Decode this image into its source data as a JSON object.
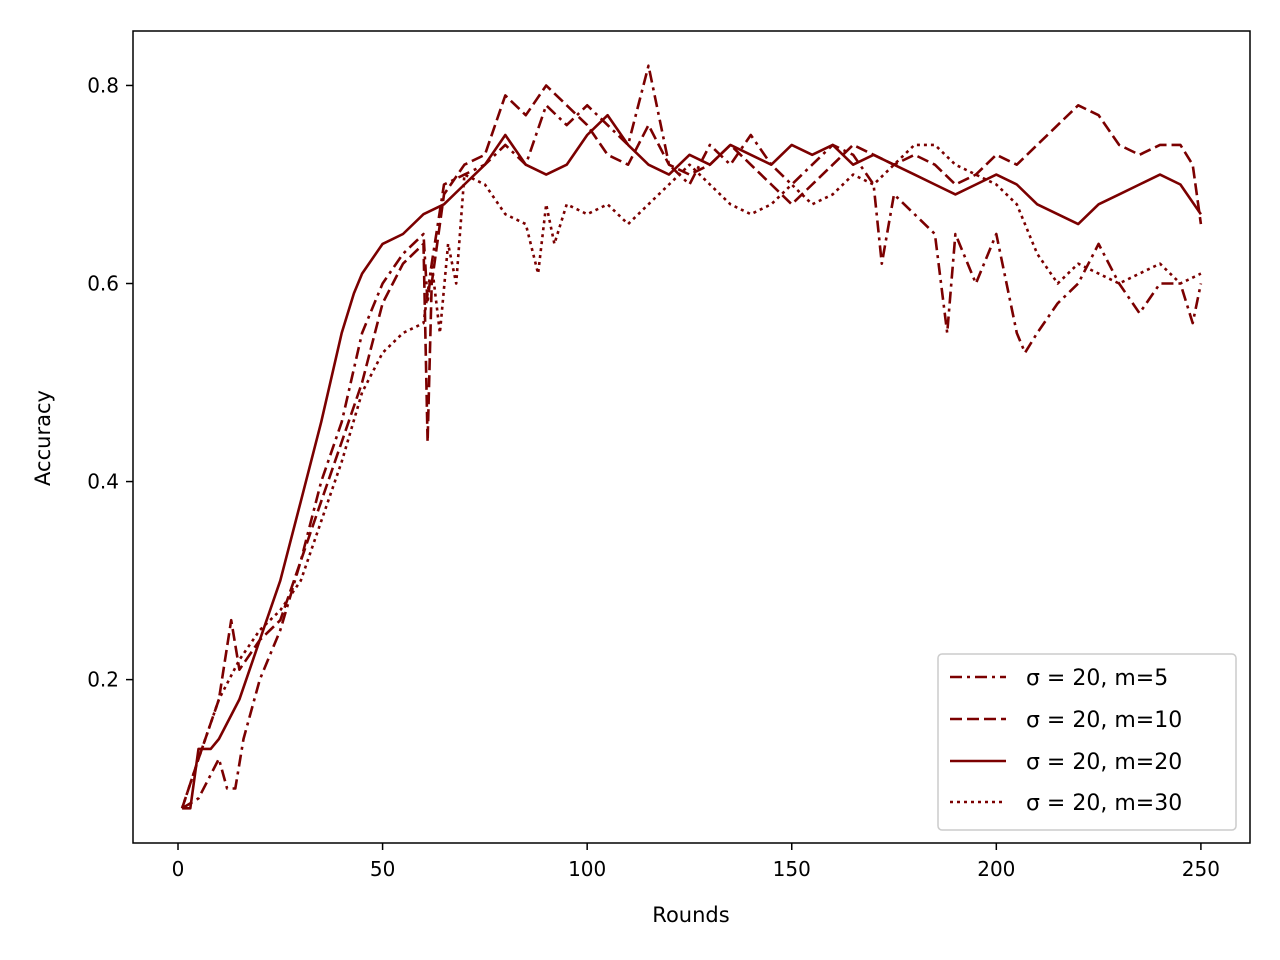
{
  "colors": {
    "series": "#7b0000"
  },
  "chart_data": {
    "type": "line",
    "title": "",
    "xlabel": "Rounds",
    "ylabel": "Accuracy",
    "xlim": [
      -11,
      262
    ],
    "ylim": [
      0.035,
      0.855
    ],
    "xticks": [
      0,
      50,
      100,
      150,
      200,
      250
    ],
    "yticks": [
      0.2,
      0.4,
      0.6,
      0.8
    ],
    "x_tick_labels": [
      "0",
      "50",
      "100",
      "150",
      "200",
      "250"
    ],
    "y_tick_labels": [
      "0.2",
      "0.4",
      "0.6",
      "0.8"
    ],
    "grid": false,
    "legend_position": "lower-right",
    "series": [
      {
        "name": "σ = 20, m=5",
        "dash": "dashdot",
        "x": [
          1,
          5,
          10,
          12,
          14,
          16,
          20,
          25,
          30,
          35,
          40,
          45,
          50,
          55,
          60,
          61,
          62,
          65,
          70,
          75,
          80,
          85,
          90,
          95,
          100,
          105,
          110,
          115,
          120,
          125,
          130,
          135,
          140,
          145,
          150,
          155,
          160,
          165,
          170,
          172,
          175,
          180,
          185,
          188,
          190,
          195,
          200,
          205,
          207,
          210,
          215,
          220,
          225,
          230,
          235,
          240,
          245,
          248,
          250
        ],
        "y": [
          0.07,
          0.08,
          0.12,
          0.09,
          0.09,
          0.14,
          0.2,
          0.25,
          0.32,
          0.4,
          0.46,
          0.55,
          0.6,
          0.63,
          0.65,
          0.58,
          0.62,
          0.7,
          0.71,
          0.72,
          0.74,
          0.72,
          0.78,
          0.76,
          0.78,
          0.76,
          0.74,
          0.82,
          0.72,
          0.7,
          0.74,
          0.72,
          0.75,
          0.72,
          0.7,
          0.72,
          0.74,
          0.73,
          0.7,
          0.62,
          0.69,
          0.67,
          0.65,
          0.55,
          0.65,
          0.6,
          0.65,
          0.55,
          0.53,
          0.55,
          0.58,
          0.6,
          0.64,
          0.6,
          0.57,
          0.6,
          0.6,
          0.56,
          0.6
        ]
      },
      {
        "name": "σ = 20, m=10",
        "dash": "dashed",
        "x": [
          1,
          5,
          10,
          13,
          15,
          20,
          25,
          30,
          35,
          40,
          45,
          50,
          55,
          60,
          61,
          62,
          65,
          70,
          75,
          80,
          85,
          90,
          95,
          100,
          105,
          110,
          115,
          120,
          125,
          130,
          135,
          140,
          145,
          150,
          155,
          160,
          165,
          170,
          175,
          180,
          185,
          190,
          195,
          200,
          205,
          210,
          215,
          220,
          225,
          230,
          235,
          240,
          245,
          248,
          250
        ],
        "y": [
          0.07,
          0.12,
          0.18,
          0.26,
          0.21,
          0.24,
          0.26,
          0.32,
          0.38,
          0.44,
          0.5,
          0.58,
          0.62,
          0.64,
          0.44,
          0.6,
          0.69,
          0.72,
          0.73,
          0.79,
          0.77,
          0.8,
          0.78,
          0.76,
          0.73,
          0.72,
          0.76,
          0.72,
          0.71,
          0.72,
          0.74,
          0.72,
          0.7,
          0.68,
          0.7,
          0.72,
          0.74,
          0.73,
          0.72,
          0.73,
          0.72,
          0.7,
          0.71,
          0.73,
          0.72,
          0.74,
          0.76,
          0.78,
          0.77,
          0.74,
          0.73,
          0.74,
          0.74,
          0.72,
          0.66
        ]
      },
      {
        "name": "σ = 20, m=20",
        "dash": "solid",
        "x": [
          1,
          3,
          5,
          8,
          10,
          15,
          20,
          25,
          30,
          35,
          40,
          43,
          45,
          50,
          55,
          60,
          65,
          70,
          75,
          80,
          85,
          90,
          95,
          100,
          105,
          110,
          115,
          120,
          125,
          130,
          135,
          140,
          145,
          150,
          155,
          160,
          165,
          170,
          175,
          180,
          185,
          190,
          195,
          200,
          205,
          210,
          215,
          220,
          225,
          230,
          235,
          240,
          245,
          250
        ],
        "y": [
          0.07,
          0.07,
          0.13,
          0.13,
          0.14,
          0.18,
          0.24,
          0.3,
          0.38,
          0.46,
          0.55,
          0.59,
          0.61,
          0.64,
          0.65,
          0.67,
          0.68,
          0.7,
          0.72,
          0.75,
          0.72,
          0.71,
          0.72,
          0.75,
          0.77,
          0.74,
          0.72,
          0.71,
          0.73,
          0.72,
          0.74,
          0.73,
          0.72,
          0.74,
          0.73,
          0.74,
          0.72,
          0.73,
          0.72,
          0.71,
          0.7,
          0.69,
          0.7,
          0.71,
          0.7,
          0.68,
          0.67,
          0.66,
          0.68,
          0.69,
          0.7,
          0.71,
          0.7,
          0.67
        ]
      },
      {
        "name": "σ = 20, m=30",
        "dash": "dotted",
        "x": [
          1,
          5,
          10,
          15,
          20,
          25,
          30,
          35,
          40,
          45,
          50,
          55,
          60,
          62,
          64,
          66,
          68,
          70,
          75,
          80,
          85,
          88,
          90,
          92,
          95,
          100,
          105,
          110,
          115,
          120,
          125,
          130,
          135,
          140,
          145,
          150,
          155,
          160,
          165,
          170,
          175,
          180,
          185,
          190,
          195,
          200,
          205,
          210,
          215,
          220,
          225,
          230,
          235,
          240,
          245,
          250
        ],
        "y": [
          0.07,
          0.12,
          0.18,
          0.22,
          0.25,
          0.27,
          0.3,
          0.36,
          0.42,
          0.49,
          0.53,
          0.55,
          0.56,
          0.62,
          0.55,
          0.64,
          0.6,
          0.71,
          0.7,
          0.67,
          0.66,
          0.61,
          0.68,
          0.64,
          0.68,
          0.67,
          0.68,
          0.66,
          0.68,
          0.7,
          0.72,
          0.7,
          0.68,
          0.67,
          0.68,
          0.7,
          0.68,
          0.69,
          0.71,
          0.7,
          0.72,
          0.74,
          0.74,
          0.72,
          0.71,
          0.7,
          0.68,
          0.63,
          0.6,
          0.62,
          0.61,
          0.6,
          0.61,
          0.62,
          0.6,
          0.61
        ]
      }
    ]
  }
}
